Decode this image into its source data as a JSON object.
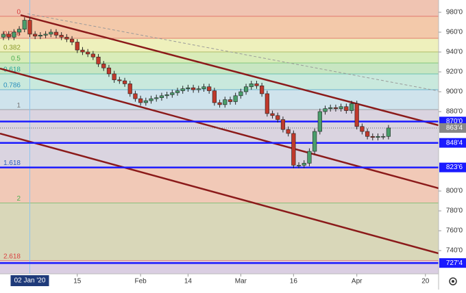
{
  "chart_data": {
    "type": "candlestick",
    "open": [
      955,
      958,
      955,
      960,
      963,
      972,
      958,
      956,
      957,
      958,
      960,
      957,
      955,
      953,
      950,
      942,
      940,
      938,
      935,
      928,
      924,
      918,
      912,
      911,
      908,
      898,
      893,
      889,
      891,
      893,
      894,
      896,
      897,
      899,
      901,
      903,
      904,
      902,
      903,
      905,
      901,
      889,
      887,
      892,
      890,
      896,
      900,
      905,
      908,
      906,
      898,
      878,
      876,
      872,
      862,
      858,
      826,
      826,
      828,
      840,
      860,
      880,
      883,
      884,
      883,
      885,
      881,
      888,
      865,
      860,
      855,
      854,
      855,
      855
    ],
    "high": [
      961,
      961,
      963,
      966,
      975,
      975,
      961,
      960,
      961,
      963,
      963,
      960,
      958,
      956,
      953,
      945,
      943,
      941,
      938,
      931,
      927,
      921,
      915,
      914,
      911,
      901,
      896,
      894,
      896,
      897,
      899,
      900,
      902,
      904,
      906,
      907,
      907,
      906,
      908,
      908,
      904,
      892,
      895,
      895,
      899,
      903,
      908,
      911,
      911,
      909,
      901,
      881,
      879,
      875,
      865,
      861,
      829,
      831,
      843,
      863,
      883,
      886,
      887,
      887,
      888,
      888,
      891,
      891,
      868,
      863,
      858,
      858,
      858,
      866.5
    ],
    "low": [
      952,
      952,
      952,
      957,
      960,
      955,
      953,
      953,
      954,
      955,
      954,
      952,
      950,
      947,
      939,
      937,
      935,
      932,
      925,
      921,
      915,
      909,
      908,
      905,
      895,
      890,
      886,
      886,
      888,
      890,
      891,
      893,
      894,
      896,
      898,
      900,
      899,
      899,
      900,
      898,
      886,
      884,
      884,
      887,
      887,
      893,
      897,
      902,
      903,
      895,
      875,
      873,
      869,
      859,
      855,
      823,
      823,
      823,
      825,
      837,
      857,
      877,
      880,
      880,
      880,
      878,
      878,
      862,
      857,
      852,
      851,
      851,
      852,
      852
    ],
    "close": [
      958,
      955,
      960,
      963,
      972,
      958,
      956,
      957,
      958,
      960,
      957,
      955,
      953,
      950,
      942,
      940,
      938,
      935,
      928,
      924,
      918,
      912,
      911,
      908,
      898,
      893,
      889,
      891,
      893,
      894,
      896,
      897,
      899,
      901,
      903,
      904,
      902,
      903,
      905,
      901,
      889,
      887,
      892,
      890,
      896,
      900,
      905,
      908,
      906,
      898,
      878,
      876,
      872,
      862,
      858,
      826,
      826,
      828,
      840,
      860,
      880,
      883,
      884,
      883,
      885,
      881,
      888,
      865,
      860,
      855,
      854,
      855,
      855,
      863.5
    ],
    "up_color": "#4a9e6b",
    "down_color": "#c0392b",
    "xlim": [
      -0.65,
      82.5
    ],
    "xticks": [
      {
        "value": 14,
        "label": "15"
      },
      {
        "value": 26,
        "label": "Feb"
      },
      {
        "value": 35,
        "label": "14"
      },
      {
        "value": 45,
        "label": "Mar"
      },
      {
        "value": 55,
        "label": "16"
      },
      {
        "value": 67,
        "label": "Apr"
      },
      {
        "value": 80,
        "label": "20"
      }
    ],
    "crosshair": {
      "x": 5,
      "label": "02 Jan '20"
    },
    "ylim": [
      716.6,
      992.4
    ],
    "yticks": [
      {
        "value": 980,
        "label": "980'0"
      },
      {
        "value": 960,
        "label": "960'0"
      },
      {
        "value": 940,
        "label": "940'0"
      },
      {
        "value": 920,
        "label": "920'0"
      },
      {
        "value": 900,
        "label": "900'0"
      },
      {
        "value": 880,
        "label": "880'0"
      },
      {
        "value": 800,
        "label": "800'0"
      },
      {
        "value": 780,
        "label": "780'0"
      },
      {
        "value": 760,
        "label": "760'0"
      },
      {
        "value": 740,
        "label": "740'0"
      }
    ],
    "price_lines": [
      {
        "value": 870,
        "label": "870'0"
      },
      {
        "value": 848.5,
        "label": "848'4"
      },
      {
        "value": 823.75,
        "label": "823'6"
      },
      {
        "value": 727.5,
        "label": "727'4"
      }
    ],
    "price_line_color": "#1a1aff",
    "last_price": {
      "value": 863.5,
      "label": "863'4"
    },
    "fib": {
      "start": 976,
      "end": 882,
      "levels": [
        0,
        0.236,
        0.382,
        0.5,
        0.618,
        0.786,
        1,
        1.618,
        2,
        2.618
      ],
      "label_colors": [
        "#d94040",
        "#d94040",
        "#8a9a2a",
        "#4caf50",
        "#26a69a",
        "#2a8fbd",
        "#777777",
        "#2a5fbd",
        "#4caf50",
        "#d94040"
      ],
      "band_colors": [
        "#f3c9aa",
        "#eef0bc",
        "#d9ecb9",
        "#c8e6c2",
        "#c9e9dd",
        "#cfe3ec",
        "#dad4e0",
        "#f1c9b7",
        "#d9d7b9",
        "#dacee2"
      ],
      "top_color": "#f0c4b2"
    },
    "trendlines": [
      {
        "points": [
          [
            3.25,
            977.2
          ],
          [
            82.5,
            866.2
          ]
        ],
        "color": "#8b1a1a",
        "dashed": false
      },
      {
        "points": [
          [
            -0.65,
            923.4
          ],
          [
            82.5,
            802.8
          ]
        ],
        "color": "#8b1a1a",
        "dashed": false
      },
      {
        "points": [
          [
            -0.65,
            857.9
          ],
          [
            82.5,
            737.2
          ]
        ],
        "color": "#8b1a1a",
        "dashed": false
      },
      {
        "points": [
          [
            4.55,
            978.6
          ],
          [
            82.5,
            900.7
          ]
        ],
        "color": "#999999",
        "dashed": true
      }
    ]
  }
}
